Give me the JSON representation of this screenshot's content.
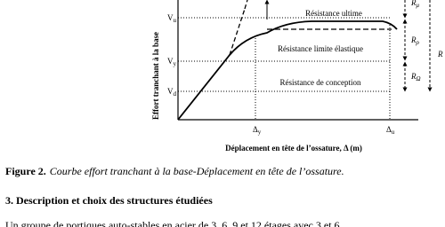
{
  "figure": {
    "y_axis_label": "Effort tranchant à la base",
    "x_axis_label": "Déplacement en tête de l’ossature, Δ (m)",
    "levels": [
      {
        "symbol": "V",
        "subscript": "u",
        "label": "Résistance ultime"
      },
      {
        "symbol": "V",
        "subscript": "y",
        "label": "Résistance limite élastique"
      },
      {
        "symbol": "V",
        "subscript": "d",
        "label": "Résistance de conception"
      }
    ],
    "displacements": [
      {
        "symbol": "Δ",
        "subscript": "y"
      },
      {
        "symbol": "Δ",
        "subscript": "u"
      }
    ],
    "factors": [
      {
        "symbol": "R",
        "subscript": "μ"
      },
      {
        "symbol": "R",
        "subscript": "ρ"
      },
      {
        "symbol": "R",
        "subscript": "Ω"
      }
    ],
    "total_factor": "R"
  },
  "caption": {
    "number": "Figure 2.",
    "text": "Courbe effort tranchant à la base-Déplacement en tête de l’ossature."
  },
  "section": {
    "heading": "3. Description et choix des structures étudiées",
    "body": "Un groupe de portiques auto-stables en acier de 3, 6, 9 et 12 étages avec 3 et 6"
  }
}
